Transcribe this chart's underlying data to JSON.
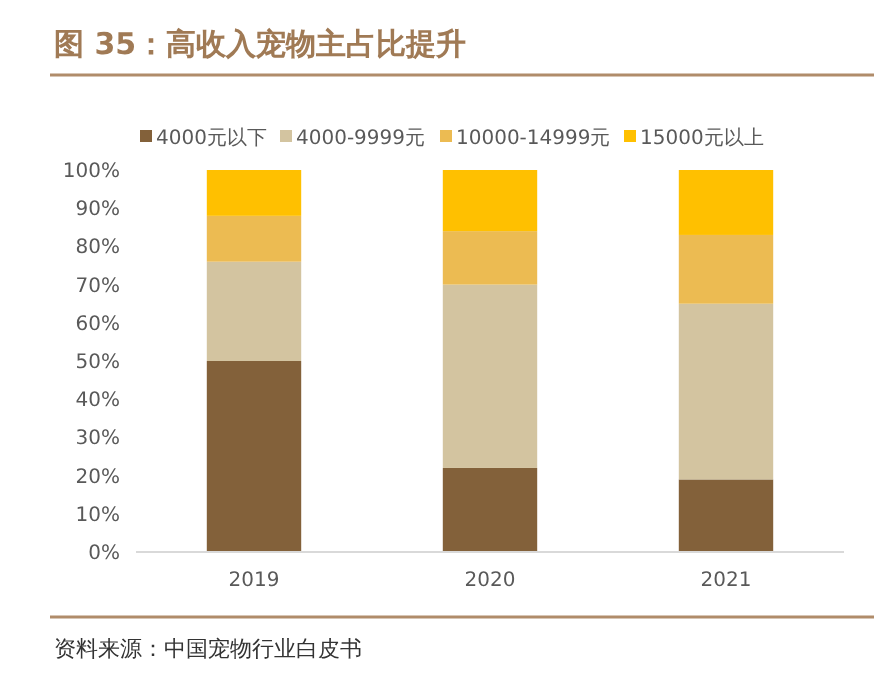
{
  "chart_data": {
    "type": "bar",
    "stacked": true,
    "title": "图 35：高收入宠物主占比提升",
    "categories": [
      "2019",
      "2020",
      "2021"
    ],
    "series": [
      {
        "name": "4000元以下",
        "color": "#83613a",
        "values": [
          50,
          22,
          19
        ]
      },
      {
        "name": "4000-9999元",
        "color": "#d3c4a0",
        "values": [
          26,
          48,
          46
        ]
      },
      {
        "name": "10000-14999元",
        "color": "#ecbb52",
        "values": [
          12,
          14,
          18
        ]
      },
      {
        "name": "15000元以上",
        "color": "#ffc000",
        "values": [
          12,
          16,
          17
        ]
      }
    ],
    "ylim": [
      0,
      100
    ],
    "yticks": [
      {
        "value": 0,
        "label": "0%"
      },
      {
        "value": 10,
        "label": "10%"
      },
      {
        "value": 20,
        "label": "20%"
      },
      {
        "value": 30,
        "label": "30%"
      },
      {
        "value": 40,
        "label": "40%"
      },
      {
        "value": 50,
        "label": "50%"
      },
      {
        "value": 60,
        "label": "60%"
      },
      {
        "value": 70,
        "label": "70%"
      },
      {
        "value": 80,
        "label": "80%"
      },
      {
        "value": 90,
        "label": "90%"
      },
      {
        "value": 100,
        "label": "100%"
      }
    ],
    "grid": false,
    "legend": "top",
    "annotations": [
      "资料来源：中国宠物行业白皮书"
    ]
  }
}
